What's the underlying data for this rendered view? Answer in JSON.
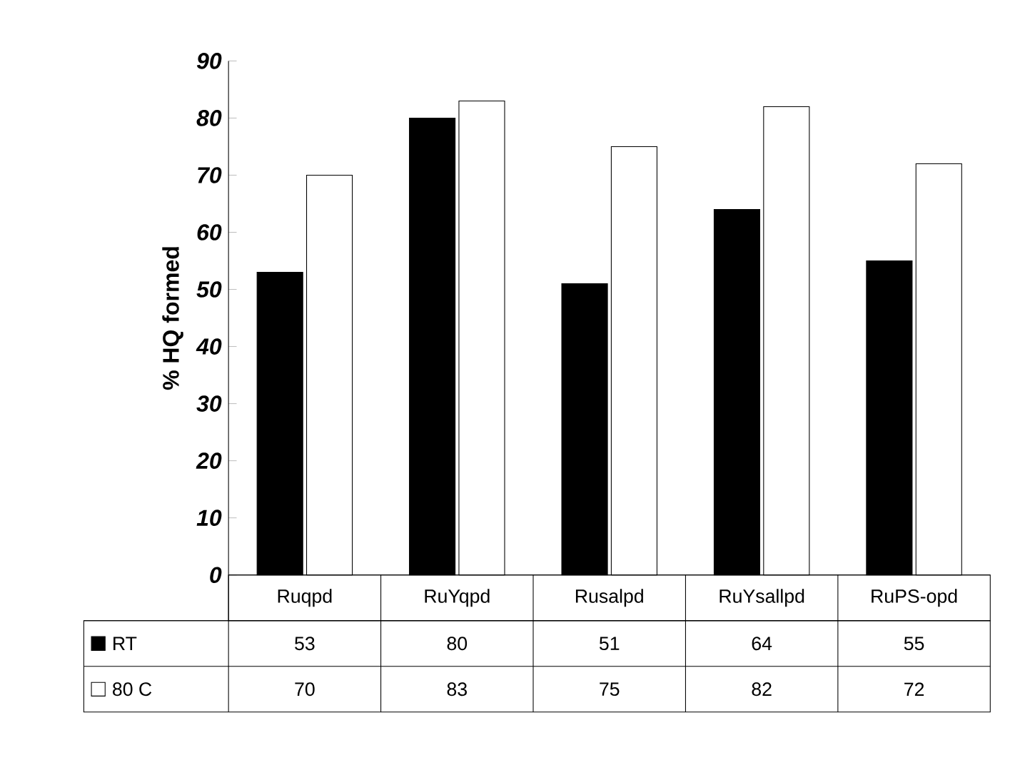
{
  "chart_data": {
    "type": "bar",
    "ylabel": "% HQ formed",
    "categories": [
      "Ruqpd",
      "RuYqpd",
      "Rusalpd",
      "RuYsallpd",
      "RuPS-opd"
    ],
    "series": [
      {
        "name": "RT",
        "color": "#000000",
        "values": [
          53,
          80,
          51,
          64,
          55
        ]
      },
      {
        "name": "80 C",
        "color": "#ffffff",
        "values": [
          70,
          83,
          75,
          82,
          72
        ]
      }
    ],
    "ylim": [
      0,
      90
    ],
    "yticks": [
      0,
      10,
      20,
      30,
      40,
      50,
      60,
      70,
      80,
      90
    ],
    "data_labels": true,
    "legend": "bottom"
  }
}
